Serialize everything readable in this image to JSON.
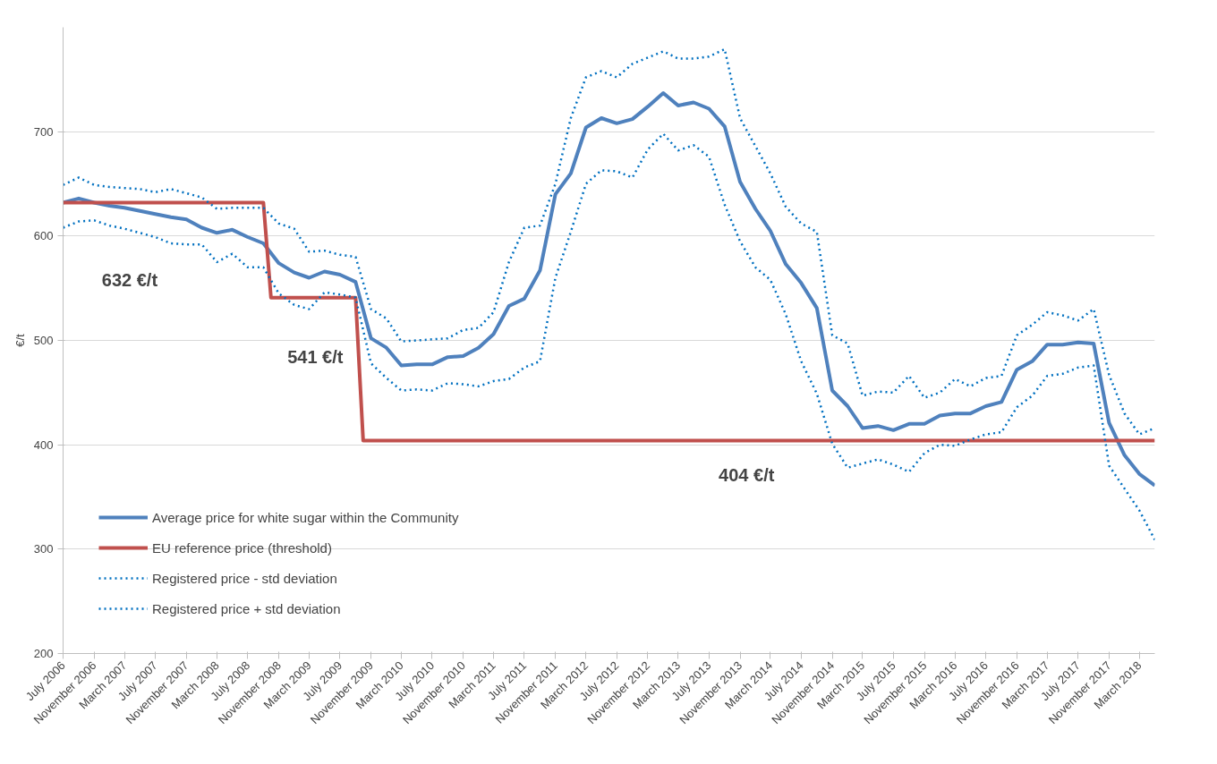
{
  "chart_data": {
    "type": "line",
    "ylabel": "€/t",
    "x": [
      "2006-07",
      "2006-09",
      "2006-11",
      "2007-01",
      "2007-03",
      "2007-05",
      "2007-07",
      "2007-09",
      "2007-11",
      "2008-01",
      "2008-03",
      "2008-05",
      "2008-07",
      "2008-09",
      "2008-11",
      "2009-01",
      "2009-03",
      "2009-05",
      "2009-07",
      "2009-09",
      "2009-11",
      "2010-01",
      "2010-03",
      "2010-05",
      "2010-07",
      "2010-09",
      "2010-11",
      "2011-01",
      "2011-03",
      "2011-05",
      "2011-07",
      "2011-09",
      "2011-11",
      "2012-01",
      "2012-03",
      "2012-05",
      "2012-07",
      "2012-09",
      "2012-11",
      "2013-01",
      "2013-03",
      "2013-05",
      "2013-07",
      "2013-09",
      "2013-11",
      "2014-01",
      "2014-03",
      "2014-05",
      "2014-07",
      "2014-09",
      "2014-11",
      "2015-01",
      "2015-03",
      "2015-05",
      "2015-07",
      "2015-09",
      "2015-11",
      "2016-01",
      "2016-03",
      "2016-05",
      "2016-07",
      "2016-09",
      "2016-11",
      "2017-01",
      "2017-03",
      "2017-05",
      "2017-07",
      "2017-09",
      "2017-11",
      "2018-01",
      "2018-03",
      "2018-05"
    ],
    "series": [
      {
        "name": "Average price for white sugar within the Community",
        "color": "#4f81bd",
        "line_style": "solid",
        "values": [
          632,
          636,
          632,
          629,
          627,
          624,
          621,
          618,
          616,
          608,
          603,
          606,
          599,
          593,
          574,
          565,
          560,
          566,
          563,
          556,
          502,
          493,
          476,
          477,
          477,
          484,
          485,
          493,
          506,
          533,
          540,
          567,
          640,
          660,
          704,
          713,
          708,
          712,
          724,
          737,
          725,
          728,
          722,
          705,
          652,
          626,
          605,
          573,
          555,
          531,
          452,
          437,
          416,
          418,
          414,
          420,
          420,
          428,
          430,
          430,
          437,
          441,
          472,
          480,
          496,
          496,
          498,
          497,
          421,
          390,
          372,
          361
        ]
      },
      {
        "name": "EU reference price (threshold)",
        "color": "#c0504d",
        "line_style": "solid",
        "x": [
          "2006-07",
          "2008-09",
          "2008-10",
          "2009-09",
          "2009-10",
          "2018-05"
        ],
        "values": [
          632,
          632,
          541,
          541,
          404,
          404
        ]
      },
      {
        "name": "Registered price - std deviation",
        "color": "#0070c0",
        "line_style": "dotted",
        "values": [
          608,
          614,
          615,
          610,
          607,
          603,
          599,
          593,
          592,
          592,
          575,
          583,
          570,
          570,
          545,
          534,
          530,
          546,
          544,
          541,
          478,
          464,
          452,
          453,
          452,
          459,
          458,
          456,
          461,
          463,
          474,
          480,
          560,
          604,
          650,
          663,
          662,
          656,
          683,
          698,
          682,
          687,
          676,
          630,
          595,
          570,
          558,
          525,
          480,
          449,
          401,
          378,
          382,
          386,
          381,
          374,
          392,
          400,
          399,
          405,
          410,
          412,
          436,
          447,
          466,
          468,
          474,
          476,
          380,
          358,
          337,
          309
        ]
      },
      {
        "name": "Registered price + std deviation",
        "color": "#0070c0",
        "line_style": "dotted",
        "values": [
          649,
          656,
          649,
          647,
          646,
          645,
          642,
          645,
          641,
          637,
          626,
          627,
          627,
          627,
          612,
          607,
          585,
          586,
          582,
          580,
          530,
          521,
          499,
          500,
          501,
          502,
          510,
          512,
          527,
          575,
          608,
          610,
          650,
          713,
          752,
          758,
          752,
          765,
          771,
          777,
          770,
          770,
          772,
          779,
          713,
          686,
          660,
          628,
          612,
          604,
          505,
          497,
          447,
          451,
          450,
          466,
          445,
          450,
          463,
          456,
          464,
          466,
          505,
          515,
          527,
          524,
          519,
          530,
          467,
          430,
          410,
          416
        ]
      }
    ],
    "xlim": [
      "2006-07",
      "2018-05"
    ],
    "xticks": [
      {
        "value": "2006-07",
        "label": "July 2006"
      },
      {
        "value": "2006-11",
        "label": "November 2006"
      },
      {
        "value": "2007-03",
        "label": "March 2007"
      },
      {
        "value": "2007-07",
        "label": "July 2007"
      },
      {
        "value": "2007-11",
        "label": "November 2007"
      },
      {
        "value": "2008-03",
        "label": "March 2008"
      },
      {
        "value": "2008-07",
        "label": "July 2008"
      },
      {
        "value": "2008-11",
        "label": "November 2008"
      },
      {
        "value": "2009-03",
        "label": "March 2009"
      },
      {
        "value": "2009-07",
        "label": "July 2009"
      },
      {
        "value": "2009-11",
        "label": "November 2009"
      },
      {
        "value": "2010-03",
        "label": "March 2010"
      },
      {
        "value": "2010-07",
        "label": "July 2010"
      },
      {
        "value": "2010-11",
        "label": "November 2010"
      },
      {
        "value": "2011-03",
        "label": "March 2011"
      },
      {
        "value": "2011-07",
        "label": "July 2011"
      },
      {
        "value": "2011-11",
        "label": "November 2011"
      },
      {
        "value": "2012-03",
        "label": "March 2012"
      },
      {
        "value": "2012-07",
        "label": "July 2012"
      },
      {
        "value": "2012-11",
        "label": "November 2012"
      },
      {
        "value": "2013-03",
        "label": "March 2013"
      },
      {
        "value": "2013-07",
        "label": "July 2013"
      },
      {
        "value": "2013-11",
        "label": "November 2013"
      },
      {
        "value": "2014-03",
        "label": "March 2014"
      },
      {
        "value": "2014-07",
        "label": "July 2014"
      },
      {
        "value": "2014-11",
        "label": "November 2014"
      },
      {
        "value": "2015-03",
        "label": "March 2015"
      },
      {
        "value": "2015-07",
        "label": "July 2015"
      },
      {
        "value": "2015-11",
        "label": "November 2015"
      },
      {
        "value": "2016-03",
        "label": "March 2016"
      },
      {
        "value": "2016-07",
        "label": "July 2016"
      },
      {
        "value": "2016-11",
        "label": "November 2016"
      },
      {
        "value": "2017-03",
        "label": "March 2017"
      },
      {
        "value": "2017-07",
        "label": "July 2017"
      },
      {
        "value": "2017-11",
        "label": "November 2017"
      },
      {
        "value": "2018-03",
        "label": "March 2018"
      }
    ],
    "ylim": [
      200,
      800
    ],
    "yticks": [
      200,
      300,
      400,
      500,
      600,
      700
    ],
    "grid": "y",
    "legend": "bottom left",
    "marker": "none",
    "annotations": [
      "632 €/t",
      "541 €/t",
      "404 €/t"
    ]
  }
}
